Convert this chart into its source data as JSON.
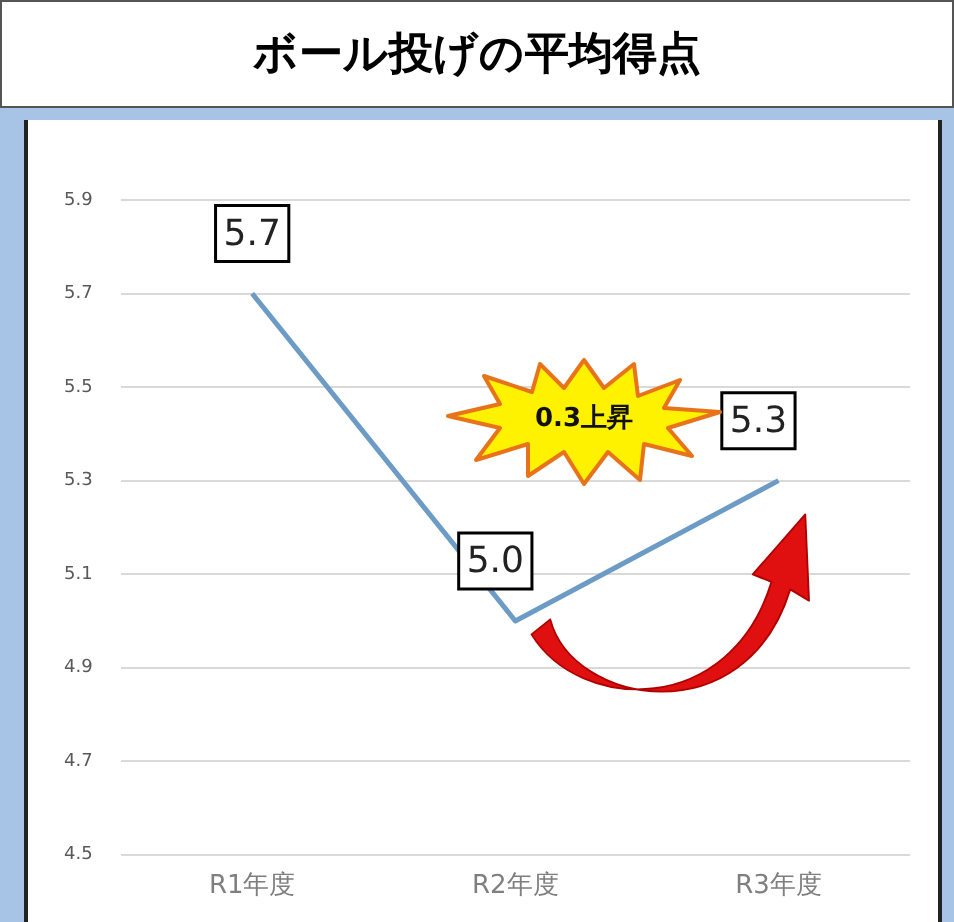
{
  "chart_data": {
    "type": "line",
    "title": "ボール投げの平均得点",
    "categories": [
      "R1年度",
      "R2年度",
      "R3年度"
    ],
    "series": [
      {
        "color": "#6c9cc6",
        "values": [
          5.7,
          5.0,
          5.3
        ],
        "value_labels": [
          "5.7",
          "5.0",
          "5.3"
        ]
      }
    ],
    "ylim": [
      4.5,
      5.9
    ],
    "yticks": [
      {
        "value": 4.5,
        "label": "4.5"
      },
      {
        "value": 4.7,
        "label": "4.7"
      },
      {
        "value": 4.9,
        "label": "4.9"
      },
      {
        "value": 5.1,
        "label": "5.1"
      },
      {
        "value": 5.3,
        "label": "5.3"
      },
      {
        "value": 5.5,
        "label": "5.5"
      },
      {
        "value": 5.7,
        "label": "5.7"
      },
      {
        "value": 5.9,
        "label": "5.9"
      }
    ],
    "grid": "y",
    "legend": false,
    "marker": "none",
    "line_style": "solid",
    "annotations": [
      "0.3上昇"
    ]
  }
}
